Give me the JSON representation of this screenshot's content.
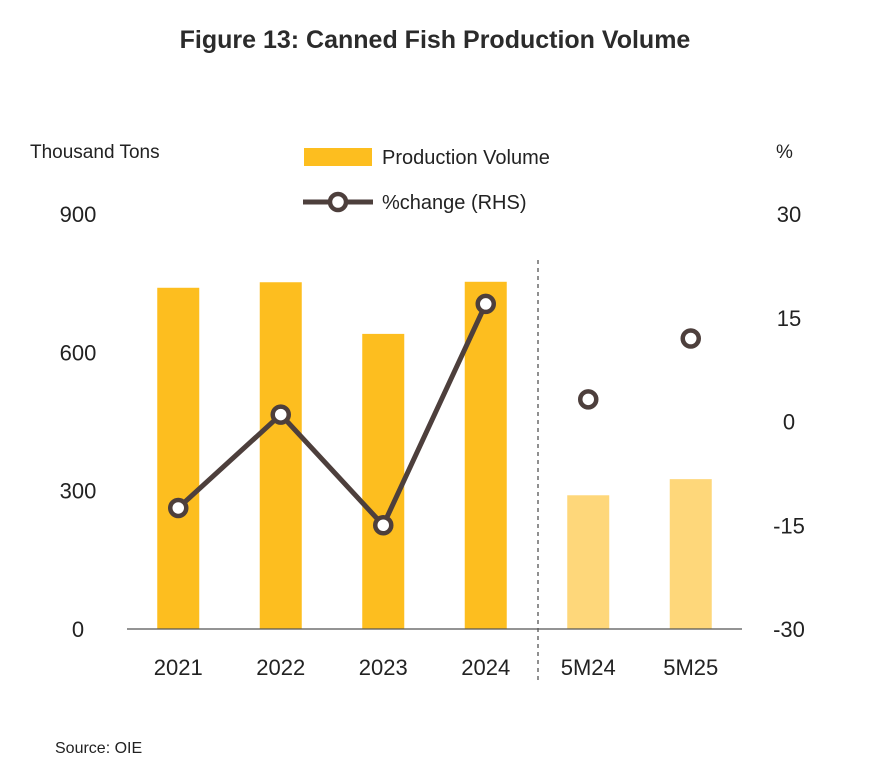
{
  "chart_data": {
    "type": "bar",
    "title": "Figure 13: Canned Fish Production Volume",
    "categories": [
      "2021",
      "2022",
      "2023",
      "2024",
      "5M24",
      "5M25"
    ],
    "y_left": {
      "label": "Thousand Tons",
      "ticks": [
        "900",
        "600",
        "300",
        "0"
      ],
      "range": [
        0,
        900
      ]
    },
    "y_right": {
      "label": "%",
      "ticks": [
        "30",
        "15",
        "0",
        "-15",
        "-30"
      ],
      "range": [
        -30,
        30
      ]
    },
    "series": [
      {
        "name": "Production Volume",
        "kind": "bar",
        "axis": "left",
        "values": [
          740,
          752,
          640,
          753,
          290,
          325
        ]
      },
      {
        "name": "%change (RHS)",
        "kind": "line",
        "axis": "right",
        "values": [
          -12.5,
          1.0,
          -15.0,
          17.0,
          3.2,
          12.0
        ],
        "connected_through": "2024"
      }
    ],
    "bar_colors": {
      "annual": "#FDBE1F",
      "partial_year": "#FED77A"
    },
    "line_color": "#4D3F3C",
    "divider": {
      "between": [
        "2024",
        "5M24"
      ],
      "style": "dashed"
    },
    "legend_position": "top-center",
    "grid": false,
    "source": "Source: OIE"
  }
}
